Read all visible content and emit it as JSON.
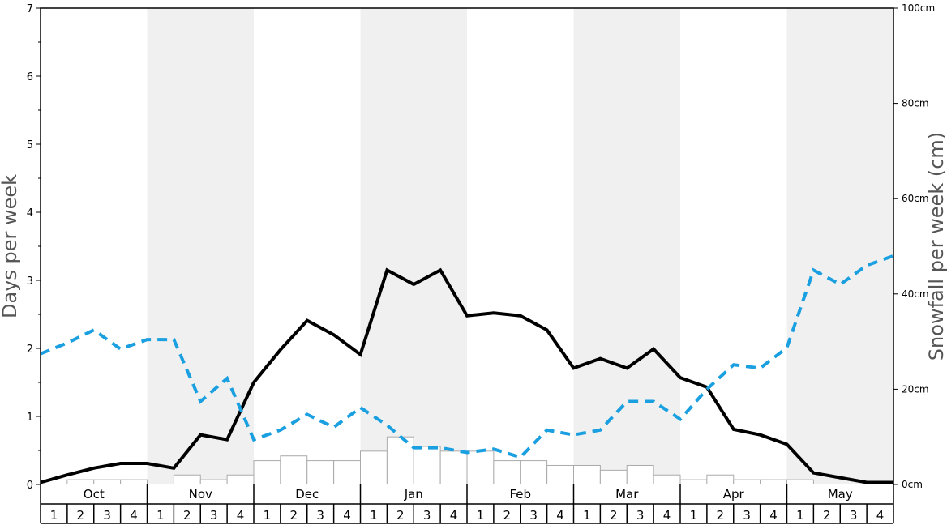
{
  "chart_data": {
    "type": "line",
    "months": [
      "Oct",
      "Nov",
      "Dec",
      "Jan",
      "Feb",
      "Mar",
      "Apr",
      "May"
    ],
    "weeks": [
      "1",
      "2",
      "3",
      "4"
    ],
    "left_axis": {
      "label": "Days per week",
      "min": 0,
      "max": 7,
      "ticks": [
        "0",
        "1",
        "2",
        "3",
        "4",
        "5",
        "6",
        "7"
      ]
    },
    "right_axis": {
      "label": "Snowfall per week (cm)",
      "min": 0,
      "max": 100,
      "ticks": [
        "0cm",
        "20cm",
        "40cm",
        "60cm",
        "80cm",
        "100cm"
      ]
    },
    "series": [
      {
        "kind": "bar",
        "axis": "right",
        "color": "#ffffff",
        "values": [
          0,
          1,
          1,
          1,
          0,
          2,
          1,
          2,
          5,
          6,
          5,
          5,
          7,
          10,
          8,
          7,
          7,
          5,
          5,
          4,
          4,
          3,
          4,
          2,
          1,
          2,
          1,
          1,
          1,
          0,
          0,
          0
        ]
      },
      {
        "kind": "line",
        "style": "solid",
        "axis": "left",
        "color": "#000000",
        "values": [
          0.03,
          0.14,
          0.24,
          0.31,
          0.31,
          0.24,
          0.73,
          0.66,
          1.5,
          1.98,
          2.41,
          2.2,
          1.91,
          3.15,
          2.94,
          3.15,
          2.48,
          2.52,
          2.48,
          2.27,
          1.71,
          1.85,
          1.71,
          1.99,
          1.57,
          1.43,
          0.81,
          0.73,
          0.59,
          0.17,
          0.1,
          0.03,
          0.03
        ]
      },
      {
        "kind": "line",
        "style": "dashed",
        "axis": "left",
        "color": "#1a9fe0",
        "values": [
          1.92,
          2.08,
          2.27,
          1.99,
          2.13,
          2.13,
          1.22,
          1.56,
          0.66,
          0.8,
          1.03,
          0.84,
          1.13,
          0.87,
          0.54,
          0.54,
          0.47,
          0.52,
          0.4,
          0.8,
          0.73,
          0.8,
          1.22,
          1.22,
          0.96,
          1.4,
          1.76,
          1.71,
          2.01,
          3.15,
          2.94,
          3.22,
          3.36
        ]
      }
    ],
    "grid": false
  }
}
